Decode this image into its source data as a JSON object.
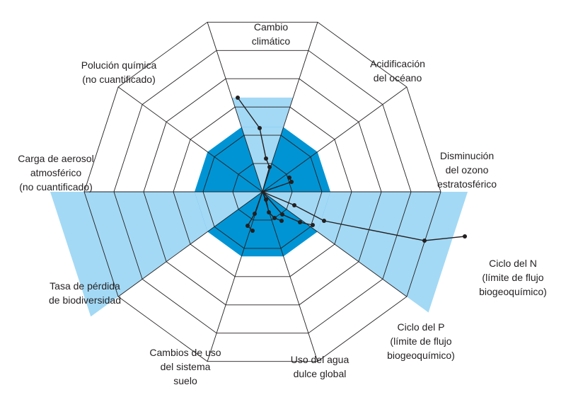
{
  "boundaries": [
    {
      "key": "climate",
      "label": [
        "Cambio",
        "climático"
      ]
    },
    {
      "key": "ocean",
      "label": [
        "Acidificación",
        "del océano"
      ]
    },
    {
      "key": "ozone",
      "label": [
        "Disminución",
        "del ozono",
        "estratosférico"
      ]
    },
    {
      "key": "nitrogen",
      "label": [
        "Ciclo del N",
        "(límite de flujo",
        "biogeoquímico)"
      ]
    },
    {
      "key": "phosphorus",
      "label": [
        "Ciclo del P",
        "(límite de flujo",
        "biogeoquímico)"
      ]
    },
    {
      "key": "water",
      "label": [
        "Uso del agua",
        "dulce global"
      ]
    },
    {
      "key": "land",
      "label": [
        "Cambios de uso",
        "del sistema",
        "suelo"
      ]
    },
    {
      "key": "biodiversity",
      "label": [
        "Tasa de pérdida",
        "de biodiversidad"
      ]
    },
    {
      "key": "aerosol",
      "label": [
        "Carga de aerosol",
        "atmosférico",
        "(no cuantificado)"
      ]
    },
    {
      "key": "pollution",
      "label": [
        "Polución química",
        "(no cuantificado)"
      ]
    }
  ],
  "colors": {
    "safe_zone": "#0094d4",
    "exceeded": "#a3d9f5",
    "grid": "#231f20",
    "trajectory": "#231f20"
  }
}
